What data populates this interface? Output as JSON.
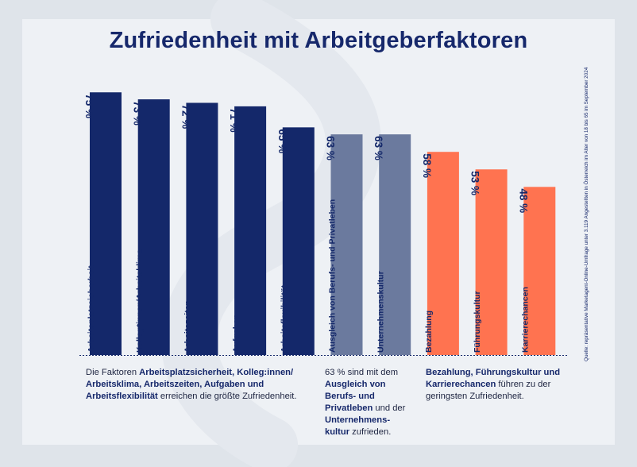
{
  "title": "Zufriedenheit mit Arbeitgeberfaktoren",
  "source": "Quelle: repräsentative Marketagent-Online-Umfrage unter 3.119 Angestellten in Österreich im Alter von 18 bis 65 im September 2024",
  "colors": {
    "dark": "#14286a",
    "mid": "#6b7a9e",
    "orange": "#ff7350",
    "title": "#16286b"
  },
  "chart_data": {
    "type": "bar",
    "orientation": "vertical",
    "unit": "%",
    "ylim": [
      0,
      100
    ],
    "grid": false,
    "legend": "none",
    "categories": [
      "Arbeitsplatzsicherheit",
      "Kolleg*innen/Arbeitsklima",
      "Arbeitszeiten",
      "Aufgaben",
      "Arbeitsflexibilität",
      "Ausgleich von Berufs- und Privatleben",
      "Unternehmenskultur",
      "Bezahlung",
      "Führungskultur",
      "Karrierechancen"
    ],
    "values": [
      75,
      73,
      72,
      71,
      65,
      63,
      63,
      58,
      53,
      48
    ],
    "value_labels": [
      "75 %",
      "73 %",
      "72 %",
      "71 %",
      "65 %",
      "63 %",
      "63 %",
      "58 %",
      "53 %",
      "48 %"
    ],
    "bar_colors": [
      "#14286a",
      "#14286a",
      "#14286a",
      "#14286a",
      "#14286a",
      "#6b7a9e",
      "#6b7a9e",
      "#ff7350",
      "#ff7350",
      "#ff7350"
    ]
  },
  "notes": [
    {
      "parts": [
        {
          "t": "Die Faktoren ",
          "b": false
        },
        {
          "t": "Arbeitsplatzsicherheit, Kolleg:innen/ Arbeitsklima, Arbeitszeiten, Aufgaben und Arbeitsflexibilität",
          "b": true
        },
        {
          "t": " erreichen die größte Zufriedenheit.",
          "b": false
        }
      ]
    },
    {
      "parts": [
        {
          "t": "63 % sind mit dem ",
          "b": false
        },
        {
          "t": "Ausgleich von Berufs- und Privatleben",
          "b": true
        },
        {
          "t": " und der ",
          "b": false
        },
        {
          "t": "Unternehmens- kultur",
          "b": true
        },
        {
          "t": " zufrieden.",
          "b": false
        }
      ]
    },
    {
      "parts": [
        {
          "t": "Bezahlung, Führungskultur und Karrierechancen",
          "b": true
        },
        {
          "t": " führen zu der geringsten Zufriedenheit.",
          "b": false
        }
      ]
    }
  ]
}
